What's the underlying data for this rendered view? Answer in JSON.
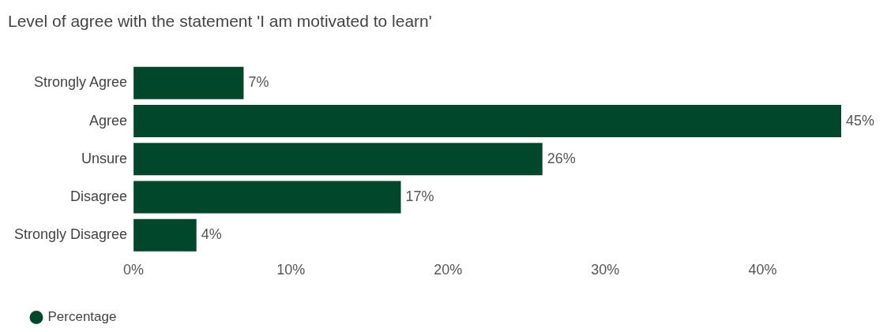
{
  "chart_data": {
    "type": "bar",
    "orientation": "horizontal",
    "title": "Level of agree with the statement 'I am motivated to learn'",
    "categories": [
      "Strongly Agree",
      "Agree",
      "Unsure",
      "Disagree",
      "Strongly Disagree"
    ],
    "series": [
      {
        "name": "Percentage",
        "color": "#00472b",
        "values": [
          7,
          45,
          26,
          17,
          4
        ],
        "value_labels": [
          "7%",
          "45%",
          "26%",
          "17%",
          "4%"
        ]
      }
    ],
    "xlim": [
      0,
      45
    ],
    "xticks": [
      {
        "value": 0,
        "label": "0%"
      },
      {
        "value": 10,
        "label": "10%"
      },
      {
        "value": 20,
        "label": "20%"
      },
      {
        "value": 30,
        "label": "30%"
      },
      {
        "value": 40,
        "label": "40%"
      }
    ],
    "legend": "bottom left"
  }
}
